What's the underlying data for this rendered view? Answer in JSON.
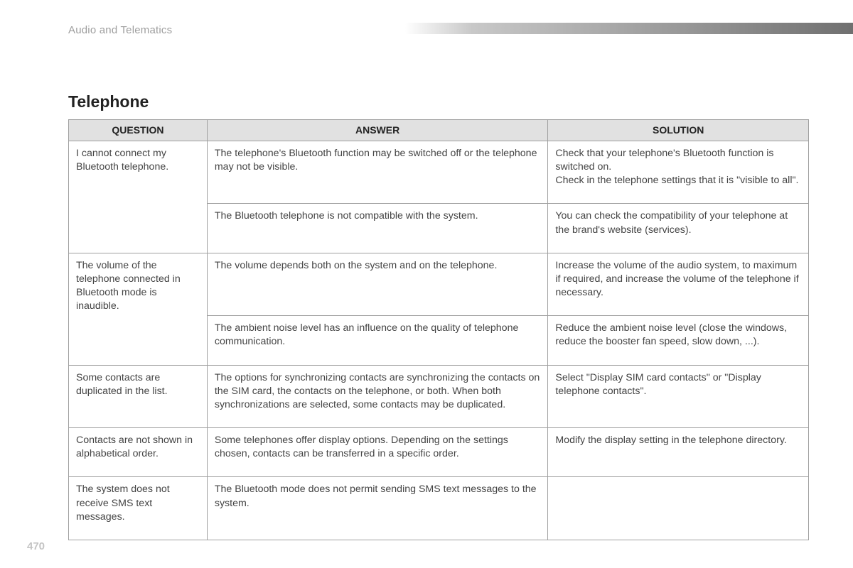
{
  "section": "Audio and Telematics",
  "title": "Telephone",
  "page_number": "470",
  "columns": {
    "q": "QUESTION",
    "a": "ANSWER",
    "s": "SOLUTION"
  },
  "col_widths": {
    "q": 195,
    "a": 480,
    "s": 367
  },
  "colors": {
    "header_bg": "#e1e1e1",
    "border": "#9f9f9f",
    "band_gradient_start": "#ffffff",
    "band_gradient_end": "#707070",
    "text": "#444444",
    "section_text": "#9e9e9e",
    "page_num": "#c4c4c4"
  },
  "rows": [
    {
      "q": "I cannot connect my Bluetooth telephone.",
      "a": "The telephone's Bluetooth function may be switched off or the telephone may not be visible.",
      "s": "Check that your telephone's Bluetooth function is switched on.\nCheck in the telephone settings that it is \"visible to all\".",
      "q_rowspan": 2
    },
    {
      "a": "The Bluetooth telephone is not compatible with the system.",
      "s": "You can check the compatibility of your telephone at the brand's website (services)."
    },
    {
      "q": "The volume of the telephone connected in Bluetooth mode is inaudible.",
      "a": "The volume depends both on the system and on the telephone.",
      "s": "Increase the volume of the audio system, to maximum if required, and increase the volume of the telephone if necessary.",
      "q_rowspan": 2
    },
    {
      "a": "The ambient noise level has an influence on the quality of telephone communication.",
      "s": "Reduce the ambient noise level (close the windows, reduce the booster fan speed, slow down, ...)."
    },
    {
      "q": "Some contacts are duplicated in the list.",
      "a": "The options for synchronizing contacts are synchronizing the contacts on the SIM card, the contacts on the telephone, or both. When both synchronizations are selected, some contacts may be duplicated.",
      "s": "Select \"Display SIM card contacts\" or \"Display telephone contacts\"."
    },
    {
      "q": "Contacts are not shown in alphabetical order.",
      "a": "Some telephones offer display options. Depending on the settings chosen, contacts can be transferred in a specific order.",
      "s": "Modify the display setting in the telephone directory."
    },
    {
      "q": "The system does not receive SMS text messages.",
      "a": "The Bluetooth mode does not permit sending SMS text messages to the system.",
      "s": ""
    }
  ]
}
